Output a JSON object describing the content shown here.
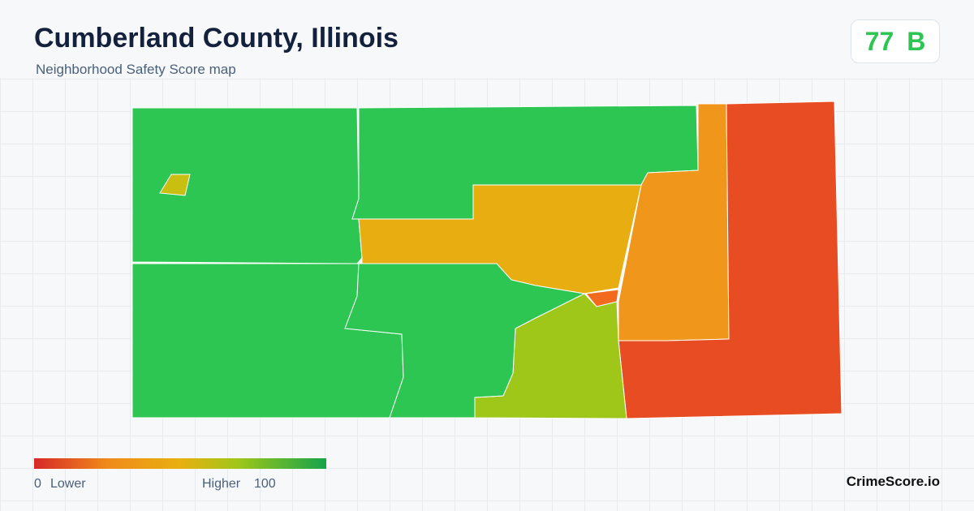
{
  "header": {
    "title": "Cumberland County, Illinois",
    "subtitle": "Neighborhood Safety Score map"
  },
  "score": {
    "value": 77,
    "grade": "B"
  },
  "legend": {
    "min": 0,
    "min_label": "Lower",
    "max_label": "Higher",
    "max": 100
  },
  "brand": "CrimeScore.io"
}
